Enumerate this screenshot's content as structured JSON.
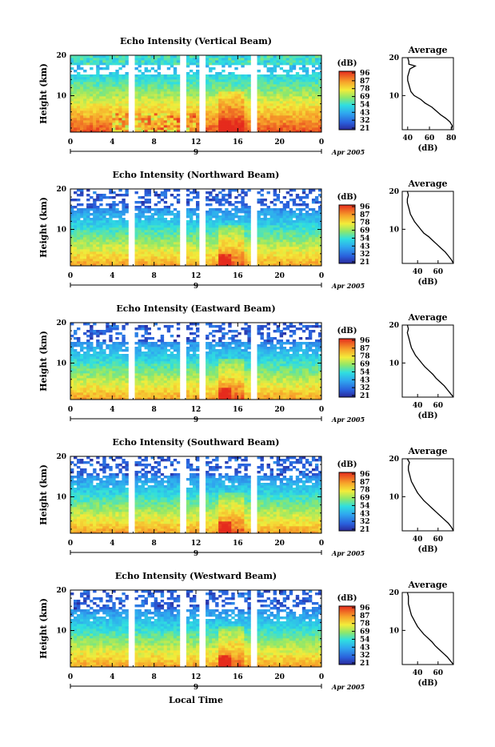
{
  "figure": {
    "xlabel": "Local Time",
    "date_label": "Apr 2005",
    "day_marker": "9",
    "colorbar_unit": "(dB)",
    "profile_title": "Average",
    "profile_xlabel": "(dB)",
    "ylabel": "Height (km)"
  },
  "chart_data": [
    {
      "type": "heatmap",
      "title": "Echo Intensity (Vertical Beam)",
      "ylabel": "Height (km)",
      "xlim": [
        0,
        24
      ],
      "ylim": [
        1,
        20
      ],
      "xticks": [
        "0",
        "4",
        "8",
        "12",
        "16",
        "20",
        "0"
      ],
      "yticks": [
        "10",
        "20"
      ],
      "data_gaps_hours": [
        [
          5.7,
          5.9
        ],
        [
          10.6,
          10.8
        ],
        [
          12.6,
          12.8
        ],
        [
          17.5,
          17.7
        ]
      ],
      "colorbar": {
        "unit": "(dB)",
        "ticks": [
          "96",
          "87",
          "78",
          "69",
          "54",
          "43",
          "32",
          "21"
        ]
      },
      "profile": {
        "title": "Average",
        "xlabel": "(dB)",
        "xticks": [
          "40",
          "60",
          "80"
        ],
        "xlim": [
          35,
          82
        ],
        "ylim": [
          1,
          20
        ],
        "points": [
          [
            1,
            80
          ],
          [
            2,
            81
          ],
          [
            3,
            79
          ],
          [
            4,
            75
          ],
          [
            5,
            70
          ],
          [
            6,
            66
          ],
          [
            7,
            62
          ],
          [
            8,
            56
          ],
          [
            9,
            52
          ],
          [
            10,
            46
          ],
          [
            11,
            43
          ],
          [
            12,
            42
          ],
          [
            13,
            41
          ],
          [
            14,
            40
          ],
          [
            15,
            40
          ],
          [
            16,
            41
          ],
          [
            17,
            42
          ],
          [
            17.8,
            47
          ],
          [
            18.3,
            41
          ],
          [
            19,
            41
          ],
          [
            20,
            40
          ]
        ]
      }
    },
    {
      "type": "heatmap",
      "title": "Echo Intensity (Northward Beam)",
      "ylabel": "Height (km)",
      "xlim": [
        0,
        24
      ],
      "ylim": [
        1,
        20
      ],
      "xticks": [
        "0",
        "4",
        "8",
        "12",
        "16",
        "20",
        "0"
      ],
      "yticks": [
        "10",
        "20"
      ],
      "data_gaps_hours": [
        [
          5.7,
          5.9
        ],
        [
          10.6,
          10.8
        ],
        [
          12.6,
          12.8
        ],
        [
          17.5,
          17.7
        ]
      ],
      "colorbar": {
        "unit": "(dB)",
        "ticks": [
          "96",
          "87",
          "78",
          "69",
          "54",
          "43",
          "32",
          "21"
        ]
      },
      "profile": {
        "title": "Average",
        "xlabel": "(dB)",
        "xticks": [
          "40",
          "60"
        ],
        "xlim": [
          25,
          75
        ],
        "ylim": [
          1,
          20
        ],
        "points": [
          [
            1,
            75
          ],
          [
            2,
            73
          ],
          [
            3,
            70
          ],
          [
            4,
            67
          ],
          [
            5,
            63
          ],
          [
            6,
            59
          ],
          [
            7,
            55
          ],
          [
            8,
            51
          ],
          [
            9,
            46
          ],
          [
            10,
            43
          ],
          [
            11,
            40
          ],
          [
            12,
            37
          ],
          [
            13,
            35
          ],
          [
            14,
            33
          ],
          [
            15,
            32
          ],
          [
            16,
            31
          ],
          [
            17,
            30
          ],
          [
            18,
            30
          ],
          [
            19,
            31
          ],
          [
            20,
            30
          ]
        ]
      }
    },
    {
      "type": "heatmap",
      "title": "Echo Intensity (Eastward Beam)",
      "ylabel": "Height (km)",
      "xlim": [
        0,
        24
      ],
      "ylim": [
        1,
        20
      ],
      "xticks": [
        "0",
        "4",
        "8",
        "12",
        "16",
        "20",
        "0"
      ],
      "yticks": [
        "10",
        "20"
      ],
      "data_gaps_hours": [
        [
          5.7,
          5.9
        ],
        [
          10.6,
          10.8
        ],
        [
          12.6,
          12.8
        ],
        [
          17.5,
          17.7
        ]
      ],
      "colorbar": {
        "unit": "(dB)",
        "ticks": [
          "96",
          "87",
          "78",
          "69",
          "54",
          "43",
          "32",
          "21"
        ]
      },
      "profile": {
        "title": "Average",
        "xlabel": "(dB)",
        "xticks": [
          "40",
          "60"
        ],
        "xlim": [
          25,
          75
        ],
        "ylim": [
          1,
          20
        ],
        "points": [
          [
            1,
            75
          ],
          [
            2,
            72
          ],
          [
            3,
            69
          ],
          [
            4,
            66
          ],
          [
            5,
            62
          ],
          [
            6,
            58
          ],
          [
            7,
            55
          ],
          [
            8,
            51
          ],
          [
            9,
            47
          ],
          [
            10,
            44
          ],
          [
            11,
            41
          ],
          [
            12,
            38
          ],
          [
            13,
            36
          ],
          [
            14,
            34
          ],
          [
            15,
            33
          ],
          [
            16,
            32
          ],
          [
            17,
            31
          ],
          [
            18,
            30
          ],
          [
            19,
            31
          ],
          [
            20,
            30
          ]
        ]
      }
    },
    {
      "type": "heatmap",
      "title": "Echo Intensity (Southward Beam)",
      "ylabel": "Height (km)",
      "xlim": [
        0,
        24
      ],
      "ylim": [
        1,
        20
      ],
      "xticks": [
        "0",
        "4",
        "8",
        "12",
        "16",
        "20",
        "0"
      ],
      "yticks": [
        "10",
        "20"
      ],
      "data_gaps_hours": [
        [
          5.7,
          5.9
        ],
        [
          10.6,
          10.8
        ],
        [
          12.6,
          12.8
        ],
        [
          17.5,
          17.7
        ]
      ],
      "colorbar": {
        "unit": "(dB)",
        "ticks": [
          "96",
          "87",
          "78",
          "69",
          "54",
          "43",
          "32",
          "21"
        ]
      },
      "profile": {
        "title": "Average",
        "xlabel": "(dB)",
        "xticks": [
          "40",
          "60"
        ],
        "xlim": [
          25,
          75
        ],
        "ylim": [
          1,
          20
        ],
        "points": [
          [
            1,
            75
          ],
          [
            2,
            73
          ],
          [
            3,
            70
          ],
          [
            4,
            66
          ],
          [
            5,
            62
          ],
          [
            6,
            58
          ],
          [
            7,
            54
          ],
          [
            8,
            50
          ],
          [
            9,
            46
          ],
          [
            10,
            43
          ],
          [
            11,
            40
          ],
          [
            12,
            38
          ],
          [
            13,
            36
          ],
          [
            14,
            34
          ],
          [
            15,
            33
          ],
          [
            16,
            32
          ],
          [
            17,
            31
          ],
          [
            18,
            31
          ],
          [
            19,
            32
          ],
          [
            20,
            30
          ]
        ]
      }
    },
    {
      "type": "heatmap",
      "title": "Echo Intensity (Westward Beam)",
      "ylabel": "Height (km)",
      "xlim": [
        0,
        24
      ],
      "ylim": [
        1,
        20
      ],
      "xticks": [
        "0",
        "4",
        "8",
        "12",
        "16",
        "20",
        "0"
      ],
      "yticks": [
        "10",
        "20"
      ],
      "data_gaps_hours": [
        [
          5.7,
          5.9
        ],
        [
          10.6,
          10.8
        ],
        [
          12.6,
          12.8
        ],
        [
          17.5,
          17.7
        ]
      ],
      "colorbar": {
        "unit": "(dB)",
        "ticks": [
          "96",
          "87",
          "78",
          "69",
          "54",
          "43",
          "32",
          "21"
        ]
      },
      "profile": {
        "title": "Average",
        "xlabel": "(dB)",
        "xticks": [
          "40",
          "60"
        ],
        "xlim": [
          25,
          75
        ],
        "ylim": [
          1,
          20
        ],
        "points": [
          [
            1,
            75
          ],
          [
            2,
            72
          ],
          [
            3,
            69
          ],
          [
            4,
            65
          ],
          [
            5,
            61
          ],
          [
            6,
            57
          ],
          [
            7,
            54
          ],
          [
            8,
            50
          ],
          [
            9,
            46
          ],
          [
            10,
            43
          ],
          [
            11,
            40
          ],
          [
            12,
            38
          ],
          [
            13,
            36
          ],
          [
            14,
            34
          ],
          [
            15,
            33
          ],
          [
            16,
            32
          ],
          [
            17,
            31
          ],
          [
            18,
            31
          ],
          [
            19,
            31
          ],
          [
            20,
            30
          ]
        ]
      }
    }
  ]
}
